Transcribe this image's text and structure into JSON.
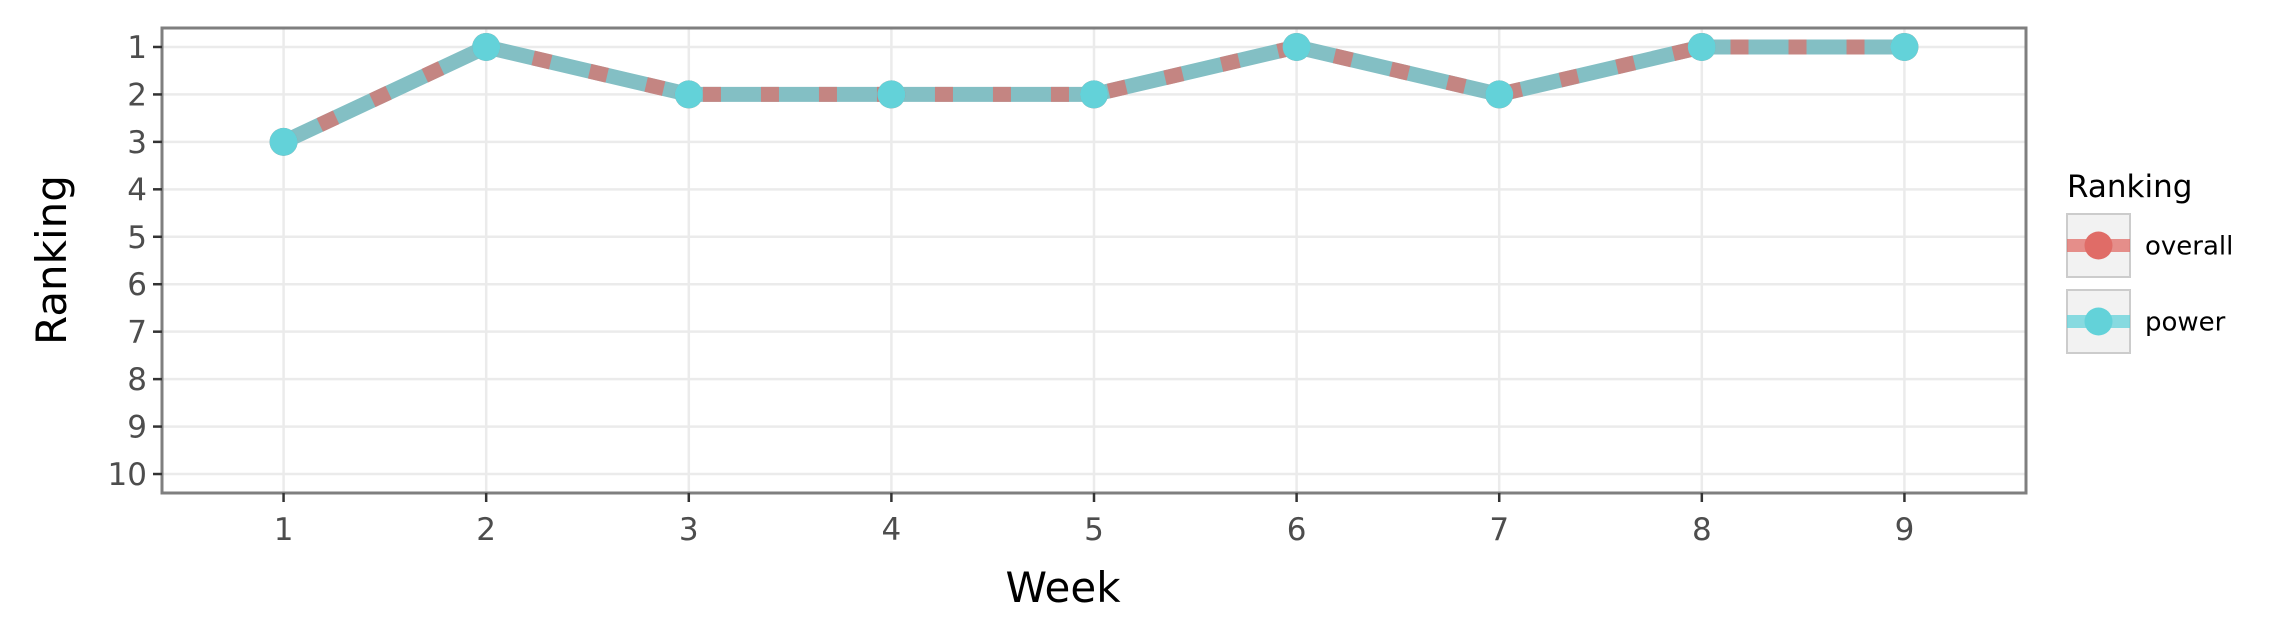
{
  "chart_data": {
    "type": "line",
    "title": "",
    "xlabel": "Week",
    "ylabel": "Ranking",
    "x": [
      1,
      2,
      3,
      4,
      5,
      6,
      7,
      8,
      9
    ],
    "xlim": [
      0.4,
      9.6
    ],
    "ylim": [
      10.4,
      0.6
    ],
    "y_reversed": true,
    "x_ticks": [
      "1",
      "2",
      "3",
      "4",
      "5",
      "6",
      "7",
      "8",
      "9"
    ],
    "y_ticks": [
      "1",
      "2",
      "3",
      "4",
      "5",
      "6",
      "7",
      "8",
      "9",
      "10"
    ],
    "grid": true,
    "legend": {
      "title": "Ranking",
      "position": "right"
    },
    "series": [
      {
        "name": "overall",
        "values": [
          3,
          1,
          2,
          2,
          2,
          1,
          2,
          1,
          1
        ],
        "color": "#e06c67",
        "line_style": "dashed"
      },
      {
        "name": "power",
        "values": [
          3,
          1,
          2,
          2,
          2,
          1,
          2,
          1,
          1
        ],
        "color": "#63d2d9",
        "line_style": "solid"
      }
    ],
    "colors": {
      "panel_border": "#7f7f7f",
      "grid": "#ebebeb",
      "combined_line": "#83bfc4"
    }
  }
}
